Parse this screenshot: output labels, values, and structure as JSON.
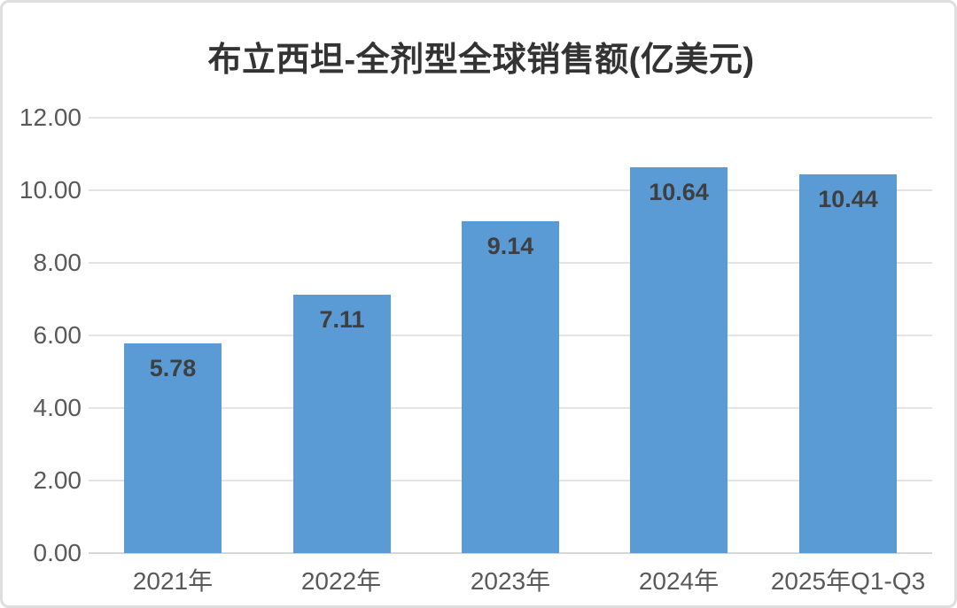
{
  "chart_data": {
    "type": "bar",
    "title": "布立西坦-全剂型全球销售额(亿美元)",
    "categories": [
      "2021年",
      "2022年",
      "2023年",
      "2024年",
      "2025年Q1-Q3"
    ],
    "values": [
      5.78,
      7.11,
      9.14,
      10.64,
      10.44
    ],
    "value_labels": [
      "5.78",
      "7.11",
      "9.14",
      "10.64",
      "10.44"
    ],
    "xlabel": "",
    "ylabel": "",
    "ylim": [
      0,
      12
    ],
    "yticks": [
      0,
      2,
      4,
      6,
      8,
      10,
      12
    ],
    "ytick_labels": [
      "0.00",
      "2.00",
      "4.00",
      "6.00",
      "8.00",
      "10.00",
      "12.00"
    ],
    "grid": true,
    "legend_position": "none",
    "colors": {
      "bar": "#5B9BD5",
      "value_label": "#3F3F3F",
      "axis_text": "#595959",
      "gridline": "#E4E4E4",
      "axis_line": "#D6D6D6",
      "title": "#333333",
      "background": "#FFFFFF",
      "frame_border": "#DEDEDE"
    }
  }
}
